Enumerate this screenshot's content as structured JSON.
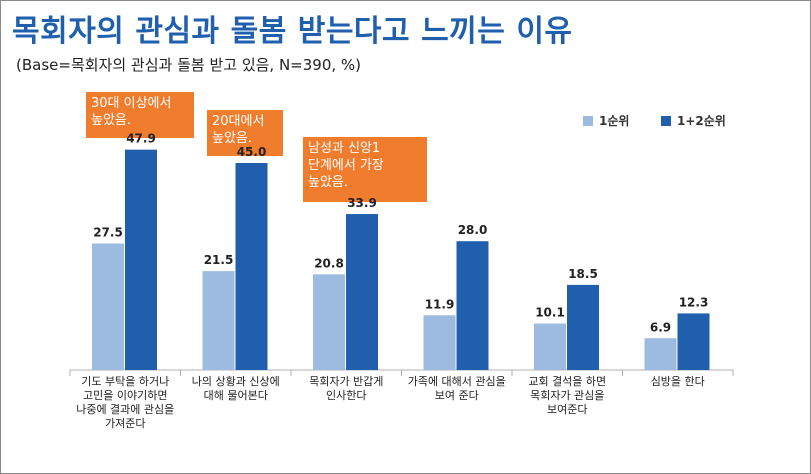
{
  "title": "목회자의 관심과 돌봄 받는다고 느끼는 이유",
  "subtitle": "(Base=목회자의 관심과 돌봄 받고 있음, N=390, %)",
  "callouts": [
    "30대 이상에서\n높았음.",
    "20대에서\n높았음.",
    "남성과 신앙1\n단계에서 가장\n높았음."
  ],
  "chart_data": {
    "type": "bar",
    "categories": [
      "기도 부탁을 하거나\n고민을 이야기하면\n나중에 결과에 관심을\n가져준다",
      "나의 상황과 신상에\n대해 물어본다",
      "목회자가 반갑게\n인사한다",
      "가족에 대해서 관심을\n보여 준다",
      "교회 결석을 하면\n목회자가 관심을\n보여준다",
      "심방을 한다"
    ],
    "series": [
      {
        "name": "1순위",
        "values": [
          27.5,
          21.5,
          20.8,
          11.9,
          10.1,
          6.9
        ],
        "color": "#9dbbe0"
      },
      {
        "name": "1+2순위",
        "values": [
          47.9,
          45.0,
          33.9,
          28.0,
          18.5,
          12.3
        ],
        "color": "#1f5fae"
      }
    ],
    "ylim": [
      0,
      50
    ],
    "grid": false,
    "legend": "top-right"
  }
}
